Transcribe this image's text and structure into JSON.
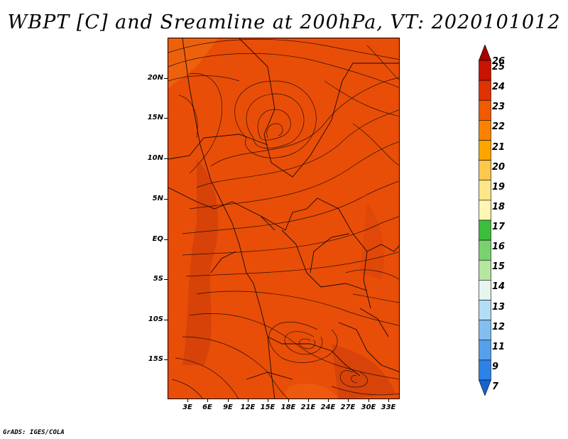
{
  "title": "WBPT [C] and Sreamline at 200hPa, VT: 2020101012",
  "footer": "GrADS: IGES/COLA",
  "lat_labels": [
    "20N",
    "15N",
    "10N",
    "5N",
    "EQ",
    "5S",
    "10S",
    "15S"
  ],
  "lon_labels": [
    "3E",
    "6E",
    "9E",
    "12E",
    "15E",
    "18E",
    "21E",
    "24E",
    "27E",
    "30E",
    "33E"
  ],
  "colorbar": {
    "levels": [
      "26",
      "25",
      "24",
      "23",
      "22",
      "21",
      "20",
      "19",
      "18",
      "17",
      "16",
      "15",
      "14",
      "13",
      "12",
      "11",
      "9",
      "7"
    ],
    "colors": [
      "#a50000",
      "#c81400",
      "#e03200",
      "#f05a00",
      "#fa8200",
      "#fca500",
      "#fdc84b",
      "#fde68a",
      "#fff5b4",
      "#3cbe3c",
      "#78d26e",
      "#b4e6a0",
      "#e6f5f0",
      "#b4dcf5",
      "#82bef0",
      "#55a0eb",
      "#2d82e6",
      "#1464d2"
    ]
  },
  "colors": {
    "field_base": "#e84e08",
    "field_dark": "#d43a05",
    "field_light": "#f06010"
  }
}
